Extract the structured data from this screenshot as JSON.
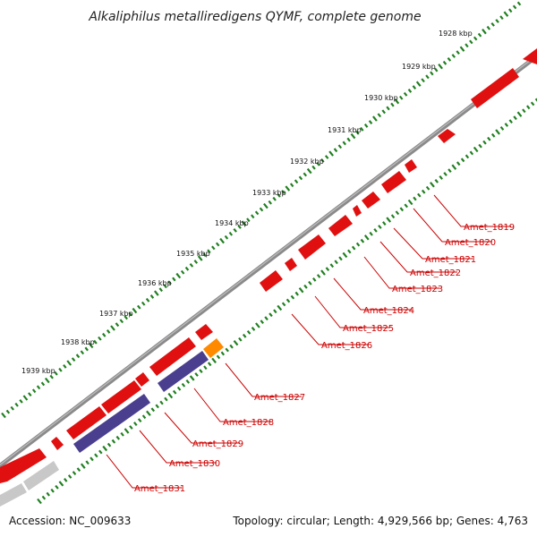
{
  "title": "Alkaliphilus metalliredigens QYMF, complete genome",
  "footer": {
    "accession": "Accession: NC_009633",
    "summary": "Topology: circular; Length: 4,929,566 bp; Genes: 4,763"
  },
  "scale_labels": [
    "1928 kbp",
    "1929 kbp",
    "1930 kbp",
    "1931 kbp",
    "1932 kbp",
    "1933 kbp",
    "1934 kbp",
    "1935 kbp",
    "1936 kbp",
    "1937 kbp",
    "1938 kbp",
    "1939 kbp"
  ],
  "gene_labels": [
    "Amet_1819",
    "Amet_1820",
    "Amet_1821",
    "Amet_1822",
    "Amet_1823",
    "Amet_1824",
    "Amet_1825",
    "Amet_1826",
    "Amet_1827",
    "Amet_1828",
    "Amet_1829",
    "Amet_1830",
    "Amet_1831"
  ],
  "colors": {
    "cds": "#ee1111",
    "rna": "#ff8800",
    "blue_feature": "#4a3f8f",
    "gray_feature": "#c8c8c8",
    "backbone": "#888888",
    "scale_ticks": "#208020",
    "labels": "#cc0000"
  }
}
